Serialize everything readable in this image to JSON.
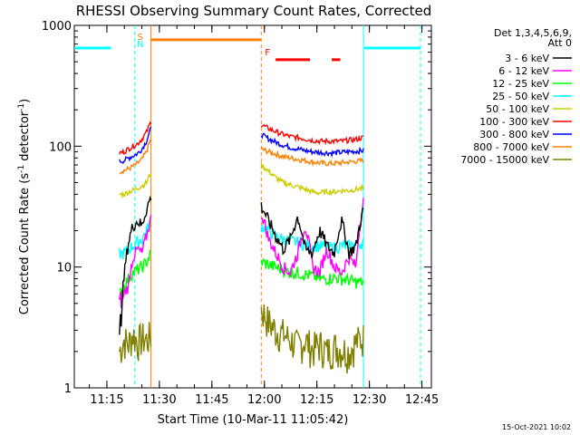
{
  "chart_data": {
    "type": "line",
    "title": "RHESSI Observing Summary Count Rates, Corrected",
    "xlabel": "Start Time (10-Mar-11 11:05:42)",
    "ylabel_main": "Corrected Count Rate (s",
    "ylabel_sup1": "-1",
    "ylabel_mid": " detector",
    "ylabel_sup2": "-1",
    "ylabel_end": ")",
    "yscale": "log",
    "ylim": [
      1,
      1000
    ],
    "xlim_minutes": [
      0,
      102
    ],
    "x_ticks": [
      {
        "label": "11:15",
        "minutes": 9.3
      },
      {
        "label": "11:30",
        "minutes": 24.3
      },
      {
        "label": "11:45",
        "minutes": 39.3
      },
      {
        "label": "12:00",
        "minutes": 54.3
      },
      {
        "label": "12:15",
        "minutes": 69.3
      },
      {
        "label": "12:30",
        "minutes": 84.3
      },
      {
        "label": "12:45",
        "minutes": 99.3
      }
    ],
    "y_ticks": [
      {
        "label": "1",
        "value": 1
      },
      {
        "label": "10",
        "value": 10
      },
      {
        "label": "100",
        "value": 100
      },
      {
        "label": "1000",
        "value": 1000
      }
    ],
    "legend": {
      "header1": "Det 1,3,4,5,6,9,",
      "header2": "Att 0",
      "entries": [
        {
          "label": "3 - 6 keV",
          "color": "#000000"
        },
        {
          "label": "6 - 12 keV",
          "color": "#ff00ff"
        },
        {
          "label": "12 - 25 keV",
          "color": "#00ff00"
        },
        {
          "label": "25 - 50 keV",
          "color": "#00ffff"
        },
        {
          "label": "50 - 100 keV",
          "color": "#cccc00"
        },
        {
          "label": "100 - 300 keV",
          "color": "#ff0000"
        },
        {
          "label": "300 - 800 keV",
          "color": "#0000ff"
        },
        {
          "label": "800 - 7000 keV",
          "color": "#ff8000"
        },
        {
          "label": "7000 - 15000 keV",
          "color": "#808000"
        }
      ]
    },
    "segments": [
      {
        "start": 12.9,
        "end": 21.9
      },
      {
        "start": 53.4,
        "end": 82.6
      }
    ],
    "series": [
      {
        "name": "3 - 6 keV",
        "color": "#000000",
        "seg1": [
          2.2,
          8,
          16,
          22,
          24,
          22,
          30,
          38
        ],
        "seg2": [
          32,
          24,
          18,
          14,
          17,
          26,
          14,
          13,
          20,
          15,
          13,
          24,
          13,
          15,
          30
        ]
      },
      {
        "name": "6 - 12 keV",
        "color": "#ff00ff",
        "seg1": [
          4.5,
          6,
          7,
          12,
          14,
          13,
          18,
          25
        ],
        "seg2": [
          28,
          17,
          13,
          10,
          9,
          13,
          22,
          10,
          9,
          14,
          10,
          9,
          12,
          10,
          35
        ]
      },
      {
        "name": "12 - 25 keV",
        "color": "#00ff00",
        "seg1": [
          6,
          7,
          8,
          9,
          9.5,
          10,
          11,
          13
        ],
        "seg2": [
          11,
          10.5,
          10,
          9.5,
          9,
          9,
          8.7,
          8.5,
          8,
          8,
          8.2,
          8,
          7.8,
          7.5,
          7.5
        ]
      },
      {
        "name": "25 - 50 keV",
        "color": "#00ffff",
        "seg1": [
          13,
          13,
          14,
          15,
          16,
          17,
          20,
          24
        ],
        "seg2": [
          22,
          20,
          18,
          17,
          16.5,
          16,
          15.5,
          15,
          15,
          14.5,
          14.5,
          15,
          15,
          15.5,
          16
        ]
      },
      {
        "name": "50 - 100 keV",
        "color": "#cccc00",
        "seg1": [
          40,
          40,
          42,
          43,
          45,
          47,
          50,
          60
        ],
        "seg2": [
          70,
          62,
          55,
          50,
          48,
          46,
          44,
          42,
          41,
          42,
          42,
          43,
          43,
          44,
          45
        ]
      },
      {
        "name": "100 - 300 keV",
        "color": "#ff0000",
        "seg1": [
          88,
          90,
          95,
          100,
          105,
          115,
          130,
          160
        ],
        "seg2": [
          150,
          140,
          132,
          125,
          120,
          118,
          115,
          112,
          110,
          110,
          110,
          110,
          112,
          114,
          118
        ]
      },
      {
        "name": "300 - 800 keV",
        "color": "#0000ff",
        "seg1": [
          75,
          76,
          80,
          83,
          87,
          95,
          110,
          140
        ],
        "seg2": [
          125,
          115,
          108,
          102,
          98,
          95,
          92,
          90,
          89,
          88,
          88,
          89,
          90,
          91,
          92
        ]
      },
      {
        "name": "800 - 7000 keV",
        "color": "#ff8000",
        "seg1": [
          62,
          63,
          65,
          68,
          72,
          78,
          90,
          115
        ],
        "seg2": [
          95,
          90,
          86,
          82,
          80,
          78,
          76,
          74,
          73,
          72,
          72,
          73,
          74,
          75,
          76
        ]
      },
      {
        "name": "7000 - 15000 keV",
        "color": "#808000",
        "seg1": [
          2,
          2.5,
          2.3,
          2.8,
          2.4,
          2.6,
          2.5,
          2.7
        ],
        "seg2": [
          4.5,
          3.5,
          3,
          2.8,
          2.5,
          2.2,
          2.5,
          2.1,
          2.3,
          2,
          2.2,
          2.1,
          2,
          2.4,
          2.6
        ]
      }
    ],
    "attenuator_lines": [
      {
        "label": "",
        "color": "#00ffff",
        "y": 650,
        "from": 0,
        "to": 10.5,
        "style": "solid"
      },
      {
        "label": "",
        "color": "#ff8000",
        "y": 760,
        "from": 21.9,
        "to": 53.4,
        "style": "solid"
      },
      {
        "label": "",
        "color": "#ff0000",
        "y": 520,
        "from": 57.5,
        "to": 76,
        "style": "dashed"
      },
      {
        "label": "",
        "color": "#00ffff",
        "y": 650,
        "from": 82.8,
        "to": 99.0,
        "style": "solid"
      }
    ],
    "event_markers": [
      {
        "label": "S",
        "color": "#ff8000",
        "minutes": 18.8
      },
      {
        "label": "N",
        "color": "#00ffff",
        "minutes": 18.8
      },
      {
        "label": "F",
        "color": "#ff0000",
        "minutes": 55.2
      }
    ],
    "vertical_lines": [
      {
        "color": "#00ffff",
        "minutes": 17.3,
        "style": "dashed"
      },
      {
        "color": "#ff8000",
        "minutes": 21.9,
        "style": "solid"
      },
      {
        "color": "#ff8000",
        "minutes": 53.4,
        "style": "dashed"
      },
      {
        "color": "#00ffff",
        "minutes": 82.6,
        "style": "solid"
      },
      {
        "color": "#00ffff",
        "minutes": 98.9,
        "style": "dashed"
      }
    ],
    "footer_date": "15-Oct-2021 10:02"
  }
}
